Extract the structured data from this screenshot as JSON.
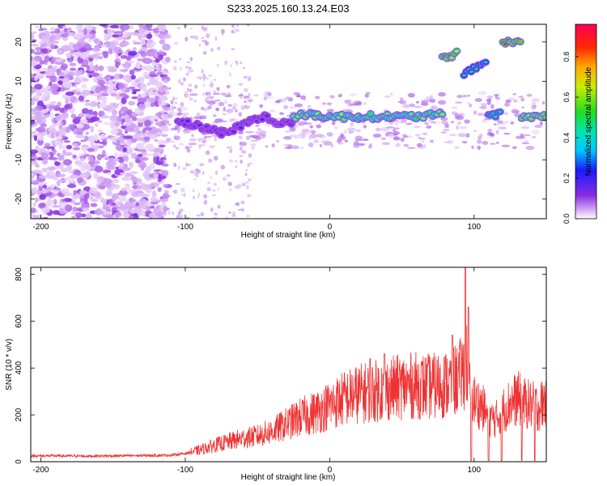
{
  "figure": {
    "title": "S233.2025.160.13.24.E03"
  },
  "chart_data": [
    {
      "type": "heatmap",
      "xlabel": "Height of straight line (km)",
      "ylabel": "Frequency (Hz)",
      "xlim": [
        -207,
        150
      ],
      "ylim": [
        -25,
        24.5
      ],
      "xticks": [
        -200,
        -100,
        0,
        100
      ],
      "yticks": [
        -20,
        -10,
        0,
        10,
        20
      ],
      "colorbar": {
        "label": "Normalized spectral amplitude",
        "range": [
          0,
          0.96
        ],
        "ticks": [
          0.0,
          0.2,
          0.4,
          0.6,
          0.8
        ]
      },
      "ridges": [
        {
          "x": [
            -105,
            -95,
            -85,
            -75,
            -65,
            -55,
            -45,
            -35,
            -25
          ],
          "freq": [
            0,
            -1,
            -2,
            -3,
            -2,
            0,
            1,
            -1,
            0
          ],
          "amplitude": 0.2
        },
        {
          "x": [
            -25,
            -10,
            0,
            20,
            40,
            60,
            78
          ],
          "freq": [
            1,
            1.5,
            1,
            1,
            1,
            1,
            1.5
          ],
          "amplitude": 0.7
        },
        {
          "x": [
            78,
            88
          ],
          "freq": [
            16,
            17
          ],
          "amplitude": 0.85
        },
        {
          "x": [
            93,
            108
          ],
          "freq": [
            12,
            15
          ],
          "amplitude": 0.5
        },
        {
          "x": [
            110,
            118
          ],
          "freq": [
            1.5,
            1.5
          ],
          "amplitude": 0.55
        },
        {
          "x": [
            120,
            132
          ],
          "freq": [
            20,
            20
          ],
          "amplitude": 0.9
        },
        {
          "x": [
            133,
            150
          ],
          "freq": [
            1,
            1
          ],
          "amplitude": 0.8
        }
      ]
    },
    {
      "type": "line",
      "xlabel": "Height of straight line (km)",
      "ylabel": "SNR (10 * v/v)",
      "xlim": [
        -207,
        150
      ],
      "ylim": [
        0,
        830
      ],
      "xticks": [
        -200,
        -100,
        0,
        100
      ],
      "yticks": [
        0,
        200,
        400,
        600,
        800
      ],
      "series": [
        {
          "color": "#ee3333",
          "x": [
            -207,
            -190,
            -170,
            -150,
            -130,
            -110,
            -100,
            -90,
            -80,
            -70,
            -60,
            -50,
            -40,
            -30,
            -20,
            -10,
            0,
            10,
            20,
            30,
            40,
            50,
            60,
            70,
            80,
            85,
            90,
            95,
            98,
            100,
            105,
            110,
            115,
            120,
            125,
            130,
            135,
            140,
            145,
            150
          ],
          "y": [
            25,
            25,
            24,
            25,
            26,
            28,
            35,
            50,
            70,
            85,
            100,
            110,
            130,
            160,
            190,
            210,
            240,
            270,
            290,
            300,
            310,
            320,
            325,
            320,
            330,
            340,
            360,
            420,
            300,
            260,
            240,
            190,
            180,
            220,
            250,
            270,
            250,
            240,
            230,
            270
          ],
          "spikes": [
            {
              "x": 94,
              "y": 830
            },
            {
              "x": 96,
              "y": 660
            },
            {
              "x": 85,
              "y": 540
            },
            {
              "x": 98,
              "y": 5
            },
            {
              "x": 110,
              "y": 5
            },
            {
              "x": 119,
              "y": 5
            },
            {
              "x": 133,
              "y": 5
            },
            {
              "x": 142,
              "y": 5
            },
            {
              "x": 38,
              "y": 460
            },
            {
              "x": 28,
              "y": 440
            }
          ]
        }
      ]
    }
  ]
}
